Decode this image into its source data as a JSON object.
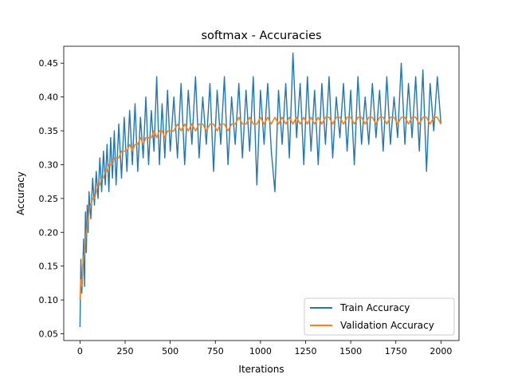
{
  "chart_data": {
    "type": "line",
    "title": "softmax - Accuracies",
    "xlabel": "Iterations",
    "ylabel": "Accuracy",
    "xlim": [
      -90,
      2100
    ],
    "ylim": [
      0.04,
      0.475
    ],
    "x_ticks": [
      0,
      250,
      500,
      750,
      1000,
      1250,
      1500,
      1750,
      2000
    ],
    "y_ticks": [
      0.05,
      0.1,
      0.15,
      0.2,
      0.25,
      0.3,
      0.35,
      0.4,
      0.45
    ],
    "x_tick_labels": [
      "0",
      "250",
      "500",
      "750",
      "1000",
      "1250",
      "1500",
      "1750",
      "2000"
    ],
    "y_tick_labels": [
      "0.05",
      "0.10",
      "0.15",
      "0.20",
      "0.25",
      "0.30",
      "0.35",
      "0.40",
      "0.45"
    ],
    "legend_position": "lower-right",
    "grid": false,
    "series": [
      {
        "name": "Train Accuracy",
        "color": "#1f77b4",
        "x": [
          0,
          5,
          10,
          15,
          20,
          25,
          30,
          35,
          40,
          45,
          50,
          60,
          70,
          80,
          90,
          100,
          110,
          120,
          130,
          140,
          150,
          160,
          170,
          180,
          190,
          200,
          215,
          230,
          245,
          260,
          275,
          290,
          305,
          320,
          335,
          350,
          365,
          380,
          395,
          410,
          425,
          440,
          455,
          470,
          485,
          500,
          520,
          540,
          560,
          580,
          600,
          620,
          640,
          660,
          680,
          700,
          720,
          740,
          760,
          780,
          800,
          820,
          840,
          860,
          880,
          900,
          920,
          940,
          960,
          980,
          1000,
          1020,
          1040,
          1060,
          1080,
          1100,
          1120,
          1140,
          1160,
          1180,
          1200,
          1220,
          1240,
          1260,
          1280,
          1300,
          1320,
          1340,
          1360,
          1380,
          1400,
          1420,
          1440,
          1460,
          1480,
          1500,
          1520,
          1540,
          1560,
          1580,
          1600,
          1620,
          1640,
          1660,
          1680,
          1700,
          1720,
          1740,
          1760,
          1780,
          1800,
          1820,
          1840,
          1860,
          1880,
          1900,
          1920,
          1940,
          1960,
          1980,
          2000
        ],
        "values": [
          0.06,
          0.16,
          0.11,
          0.14,
          0.19,
          0.12,
          0.23,
          0.17,
          0.24,
          0.2,
          0.26,
          0.22,
          0.28,
          0.24,
          0.29,
          0.25,
          0.31,
          0.26,
          0.32,
          0.27,
          0.33,
          0.26,
          0.34,
          0.28,
          0.35,
          0.27,
          0.36,
          0.28,
          0.37,
          0.29,
          0.38,
          0.3,
          0.39,
          0.29,
          0.37,
          0.31,
          0.4,
          0.3,
          0.38,
          0.32,
          0.43,
          0.3,
          0.39,
          0.31,
          0.41,
          0.32,
          0.4,
          0.31,
          0.42,
          0.3,
          0.41,
          0.33,
          0.43,
          0.31,
          0.4,
          0.33,
          0.42,
          0.29,
          0.41,
          0.33,
          0.43,
          0.3,
          0.4,
          0.33,
          0.42,
          0.31,
          0.41,
          0.32,
          0.43,
          0.27,
          0.41,
          0.33,
          0.42,
          0.32,
          0.26,
          0.41,
          0.33,
          0.42,
          0.31,
          0.465,
          0.34,
          0.42,
          0.3,
          0.43,
          0.32,
          0.41,
          0.3,
          0.42,
          0.33,
          0.43,
          0.31,
          0.4,
          0.34,
          0.42,
          0.32,
          0.41,
          0.3,
          0.43,
          0.33,
          0.4,
          0.33,
          0.42,
          0.34,
          0.41,
          0.32,
          0.43,
          0.33,
          0.4,
          0.34,
          0.45,
          0.33,
          0.42,
          0.34,
          0.43,
          0.32,
          0.44,
          0.29,
          0.42,
          0.35,
          0.43,
          0.36
        ]
      },
      {
        "name": "Validation Accuracy",
        "color": "#ff7f0e",
        "x": [
          0,
          5,
          10,
          15,
          20,
          25,
          30,
          35,
          40,
          45,
          50,
          60,
          70,
          80,
          90,
          100,
          110,
          120,
          130,
          140,
          150,
          160,
          170,
          180,
          190,
          200,
          215,
          230,
          245,
          260,
          275,
          290,
          305,
          320,
          335,
          350,
          365,
          380,
          395,
          410,
          425,
          440,
          455,
          470,
          485,
          500,
          520,
          540,
          560,
          580,
          600,
          620,
          640,
          660,
          680,
          700,
          720,
          740,
          760,
          780,
          800,
          820,
          840,
          860,
          880,
          900,
          920,
          940,
          960,
          980,
          1000,
          1020,
          1040,
          1060,
          1080,
          1100,
          1120,
          1140,
          1160,
          1180,
          1200,
          1220,
          1240,
          1260,
          1280,
          1300,
          1320,
          1340,
          1360,
          1380,
          1400,
          1420,
          1440,
          1460,
          1480,
          1500,
          1520,
          1540,
          1560,
          1580,
          1600,
          1620,
          1640,
          1660,
          1680,
          1700,
          1720,
          1740,
          1760,
          1780,
          1800,
          1820,
          1840,
          1860,
          1880,
          1900,
          1920,
          1940,
          1960,
          1980,
          2000
        ],
        "values": [
          0.1,
          0.13,
          0.12,
          0.15,
          0.16,
          0.17,
          0.19,
          0.2,
          0.21,
          0.22,
          0.23,
          0.24,
          0.25,
          0.25,
          0.26,
          0.27,
          0.27,
          0.28,
          0.28,
          0.29,
          0.29,
          0.3,
          0.3,
          0.3,
          0.31,
          0.31,
          0.31,
          0.32,
          0.32,
          0.32,
          0.33,
          0.32,
          0.33,
          0.33,
          0.34,
          0.33,
          0.34,
          0.34,
          0.34,
          0.35,
          0.34,
          0.35,
          0.35,
          0.34,
          0.35,
          0.35,
          0.35,
          0.36,
          0.35,
          0.36,
          0.35,
          0.36,
          0.35,
          0.36,
          0.36,
          0.35,
          0.36,
          0.36,
          0.35,
          0.36,
          0.36,
          0.35,
          0.36,
          0.36,
          0.37,
          0.36,
          0.36,
          0.37,
          0.36,
          0.36,
          0.37,
          0.36,
          0.37,
          0.36,
          0.37,
          0.36,
          0.37,
          0.36,
          0.37,
          0.36,
          0.37,
          0.36,
          0.37,
          0.36,
          0.37,
          0.36,
          0.37,
          0.36,
          0.37,
          0.37,
          0.36,
          0.37,
          0.37,
          0.36,
          0.37,
          0.37,
          0.36,
          0.37,
          0.37,
          0.36,
          0.37,
          0.37,
          0.36,
          0.37,
          0.37,
          0.36,
          0.37,
          0.37,
          0.36,
          0.37,
          0.37,
          0.36,
          0.37,
          0.37,
          0.36,
          0.37,
          0.37,
          0.36,
          0.37,
          0.37,
          0.36
        ]
      }
    ]
  }
}
